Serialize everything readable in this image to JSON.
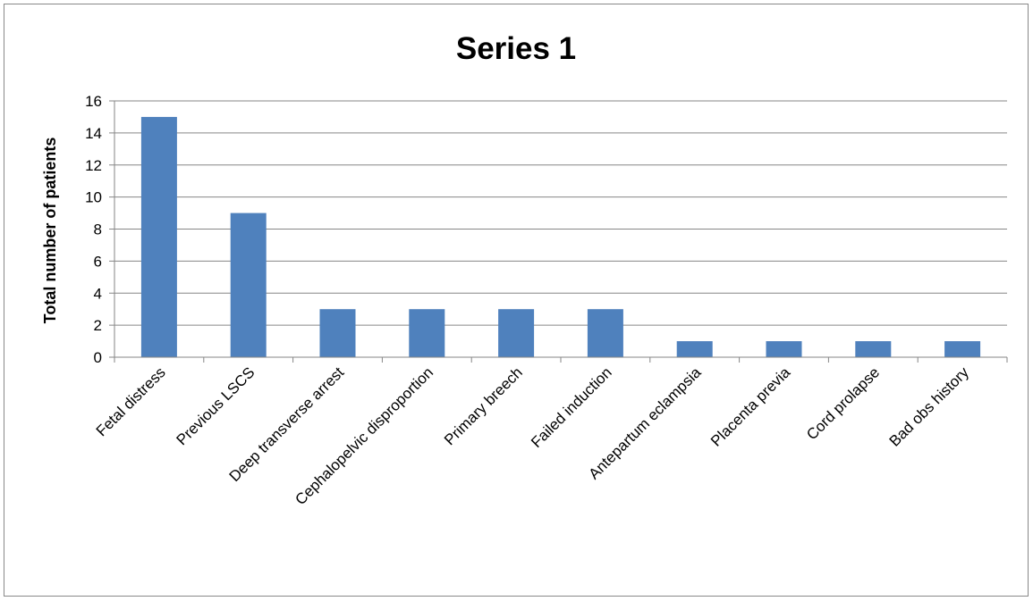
{
  "chart_data": {
    "type": "bar",
    "title": "Series 1",
    "xlabel": "",
    "ylabel": "Total number of patients",
    "categories": [
      "Fetal distress",
      "Previous LSCS",
      "Deep transverse arrest",
      "Cephalopelvic disproportion",
      "Primary breech",
      "Failed induction",
      "Antepartum eclampsia",
      "Placenta previa",
      "Cord prolapse",
      "Bad obs history"
    ],
    "values": [
      15,
      9,
      3,
      3,
      3,
      3,
      1,
      1,
      1,
      1
    ],
    "ylim": [
      0,
      16
    ],
    "yticks": [
      0,
      2,
      4,
      6,
      8,
      10,
      12,
      14,
      16
    ],
    "grid": true,
    "legend": "none",
    "colors": {
      "bar": "#4F81BD",
      "grid": "#868686",
      "axis": "#868686"
    }
  }
}
